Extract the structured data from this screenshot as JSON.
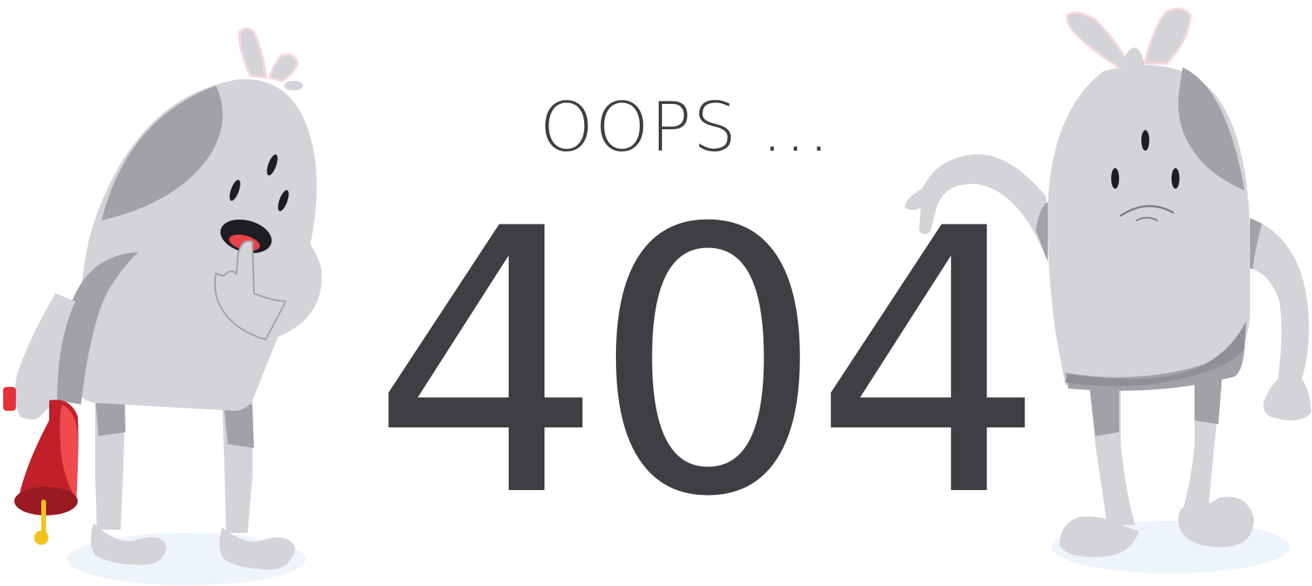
{
  "headline": "OOPS ...",
  "error_code": "404",
  "colors": {
    "text": "#3e3f43",
    "character_light": "#d3d3d8",
    "character_shade": "#a1a1a8",
    "bell_red": "#c0202a",
    "bell_yellow": "#f2c21a",
    "shadow": "#eef4fb"
  }
}
